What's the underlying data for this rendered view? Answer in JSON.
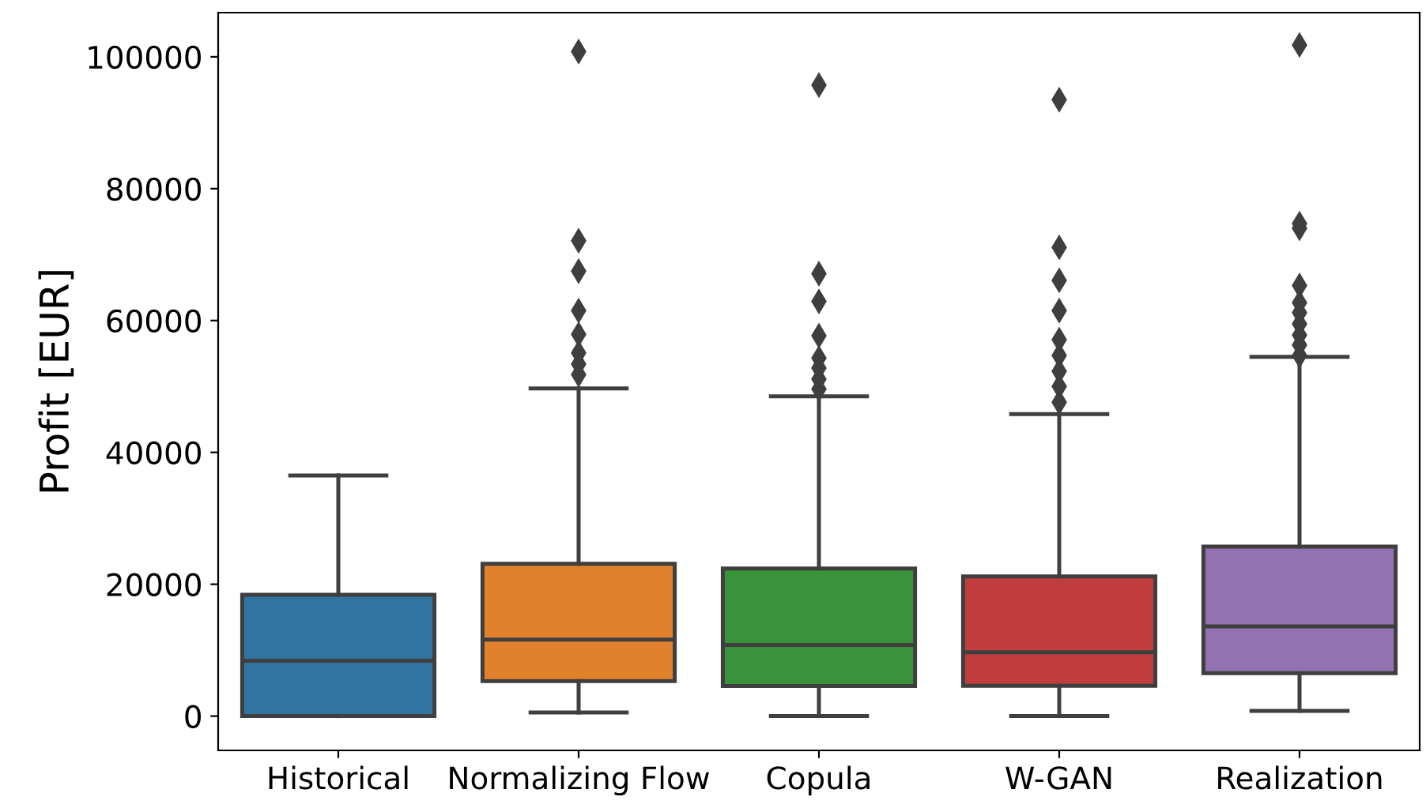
{
  "chart_data": {
    "type": "box",
    "ylabel": "Profit [EUR]",
    "categories": [
      "Historical",
      "Normalizing Flow",
      "Copula",
      "W-GAN",
      "Realization"
    ],
    "colors": [
      "#3274a1",
      "#e1812c",
      "#3a923a",
      "#c03d3e",
      "#9372b2"
    ],
    "boxes": [
      {
        "low": 0,
        "q1": 0,
        "median": 8400,
        "q3": 18400,
        "high": 36500
      },
      {
        "low": 550,
        "q1": 5300,
        "median": 11600,
        "q3": 23100,
        "high": 49700,
        "outliers": [
          51800,
          53400,
          55100,
          57900,
          61500,
          67500,
          72100,
          100800
        ]
      },
      {
        "low": 0,
        "q1": 4550,
        "median": 10800,
        "q3": 22400,
        "high": 48500,
        "outliers": [
          49600,
          51100,
          52800,
          54300,
          57700,
          62900,
          67100,
          95700
        ]
      },
      {
        "low": 0,
        "q1": 4600,
        "median": 9700,
        "q3": 21200,
        "high": 45800,
        "outliers": [
          47600,
          50000,
          52300,
          54700,
          57100,
          61500,
          66100,
          71100,
          93500
        ]
      },
      {
        "low": 800,
        "q1": 6500,
        "median": 13600,
        "q3": 25700,
        "high": 54500,
        "outliers": [
          54700,
          56300,
          57800,
          59500,
          61200,
          62700,
          65300,
          74000,
          74700,
          101800
        ]
      }
    ],
    "ylim": [
      -5200,
      106700
    ],
    "yticks": [
      0,
      20000,
      40000,
      60000,
      80000,
      100000
    ],
    "marker": "diamond",
    "grid": false
  }
}
